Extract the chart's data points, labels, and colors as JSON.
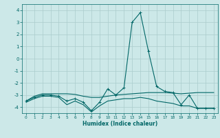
{
  "x": [
    0,
    1,
    2,
    3,
    4,
    5,
    6,
    7,
    8,
    9,
    10,
    11,
    12,
    13,
    14,
    15,
    16,
    17,
    18,
    19,
    20,
    21,
    22,
    23
  ],
  "line1": [
    -3.5,
    -3.2,
    -3.0,
    -3.0,
    -3.1,
    -3.5,
    -3.3,
    -3.6,
    -4.3,
    -3.6,
    -2.5,
    -3.0,
    -2.4,
    3.0,
    3.8,
    0.6,
    -2.3,
    -2.7,
    -2.8,
    -3.8,
    -3.0,
    -4.1,
    -4.1,
    -4.1
  ],
  "line2": [
    -3.5,
    -3.1,
    -2.9,
    -2.9,
    -2.9,
    -2.9,
    -2.95,
    -3.1,
    -3.2,
    -3.2,
    -3.1,
    -3.0,
    -2.95,
    -2.9,
    -2.85,
    -2.8,
    -2.8,
    -2.8,
    -2.85,
    -2.9,
    -2.85,
    -2.8,
    -2.8,
    -2.8
  ],
  "line3": [
    -3.6,
    -3.3,
    -3.1,
    -3.1,
    -3.2,
    -3.8,
    -3.5,
    -3.8,
    -4.4,
    -3.9,
    -3.5,
    -3.4,
    -3.3,
    -3.3,
    -3.2,
    -3.3,
    -3.5,
    -3.6,
    -3.7,
    -3.9,
    -3.9,
    -4.1,
    -4.1,
    -4.1
  ],
  "bg_color": "#cce8e8",
  "grid_color": "#aacccc",
  "line_color": "#006666",
  "xlabel": "Humidex (Indice chaleur)",
  "ylim": [
    -4.5,
    4.5
  ],
  "xlim": [
    -0.5,
    23.5
  ],
  "yticks": [
    -4,
    -3,
    -2,
    -1,
    0,
    1,
    2,
    3,
    4
  ],
  "xticks": [
    0,
    1,
    2,
    3,
    4,
    5,
    6,
    7,
    8,
    9,
    10,
    11,
    12,
    13,
    14,
    15,
    16,
    17,
    18,
    19,
    20,
    21,
    22,
    23
  ],
  "marker": "+",
  "linewidth": 0.8,
  "marker_size": 3
}
